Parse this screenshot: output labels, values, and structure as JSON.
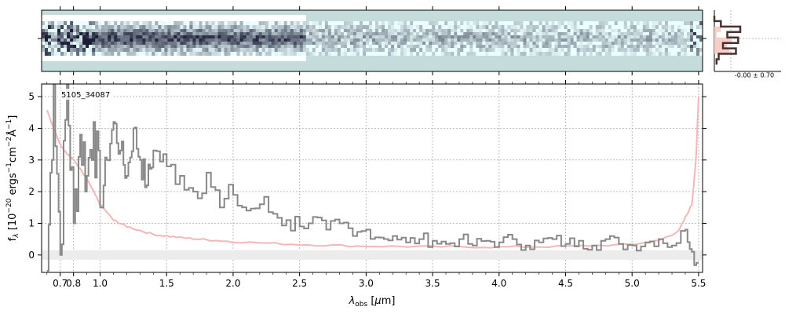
{
  "chart_data": [
    {
      "type": "heatmap",
      "panel": "2D spectrum",
      "colormap": "blue-grey on white, dark = high",
      "background_color": "#c5dcdc",
      "note_bands": "trace centered, strongest at blue end"
    },
    {
      "type": "line",
      "panel": "profile",
      "annotation": "-0.00 ± 0.70",
      "series": [
        {
          "values": [
            0.0,
            0.15,
            0.6,
            0.3,
            0.55,
            0.2,
            0.5,
            0.1,
            0.05
          ]
        },
        {
          "values": [
            0.0,
            0.0,
            0.15,
            0.05,
            0.4,
            0.3,
            0.35,
            0.0,
            0.0
          ]
        }
      ]
    },
    {
      "type": "line",
      "panel": "1D spectrum",
      "label": "5105_34087",
      "xlabel": "λ_obs [μm]",
      "ylabel": "f_λ [10^-20 ergs^-1cm^-2Å^-1]",
      "x_ticks": [
        "0.7",
        "0.8",
        "1.0",
        "1.5",
        "2.0",
        "2.5",
        "3.0",
        "3.5",
        "4.0",
        "4.5",
        "5.0",
        "5.5"
      ],
      "y_ticks": [
        "0",
        "1",
        "2",
        "3",
        "4",
        "5"
      ],
      "xlim": [
        0.56,
        5.53
      ],
      "ylim": [
        -0.55,
        5.4
      ],
      "grid": true,
      "colors": {
        "data": "#888888",
        "model": "#f4b6b6",
        "band": "#ececec"
      },
      "series": [
        {
          "style": "steps",
          "x": [
            0.6,
            0.65,
            0.7,
            0.75,
            0.8,
            0.85,
            0.9,
            0.95,
            1.0,
            1.05,
            1.1,
            1.15,
            1.2,
            1.25,
            1.3,
            1.35,
            1.4,
            1.5,
            1.6,
            1.7,
            1.8,
            1.9,
            2.0,
            2.1,
            2.2,
            2.3,
            2.4,
            2.5,
            2.6,
            2.7,
            2.8,
            2.9,
            3.0,
            3.1,
            3.2,
            3.3,
            3.4,
            3.5,
            3.6,
            3.7,
            3.8,
            3.9,
            4.0,
            4.1,
            4.2,
            4.3,
            4.4,
            4.5,
            4.6,
            4.7,
            4.8,
            4.9,
            5.0,
            5.1,
            5.2,
            5.3,
            5.4,
            5.45,
            5.5
          ],
          "y": [
            -0.5,
            5.4,
            0.0,
            5.4,
            1.0,
            3.8,
            2.5,
            4.2,
            1.5,
            3.0,
            4.2,
            3.3,
            2.5,
            4.0,
            3.0,
            2.2,
            3.3,
            2.8,
            2.5,
            2.0,
            2.6,
            1.5,
            1.9,
            1.4,
            1.6,
            1.3,
            1.1,
            0.9,
            1.2,
            0.8,
            1.0,
            0.6,
            0.8,
            0.55,
            0.6,
            0.4,
            0.5,
            0.45,
            0.35,
            0.5,
            0.3,
            0.45,
            0.4,
            0.5,
            0.3,
            0.4,
            0.5,
            0.35,
            0.45,
            0.3,
            0.5,
            0.35,
            0.3,
            0.4,
            0.5,
            0.3,
            0.8,
            0.1,
            -0.5
          ]
        },
        {
          "style": "model",
          "x": [
            0.6,
            0.65,
            0.7,
            0.75,
            0.8,
            0.9,
            1.0,
            1.1,
            1.2,
            1.4,
            1.6,
            1.8,
            2.0,
            2.5,
            3.0,
            3.5,
            4.0,
            4.5,
            5.0,
            5.2,
            5.35,
            5.45,
            5.48,
            5.5
          ],
          "y": [
            4.6,
            4.0,
            3.5,
            3.2,
            3.0,
            2.4,
            1.6,
            1.1,
            0.9,
            0.65,
            0.55,
            0.48,
            0.42,
            0.33,
            0.28,
            0.26,
            0.25,
            0.27,
            0.33,
            0.45,
            0.75,
            1.6,
            3.0,
            5.0
          ]
        }
      ]
    }
  ]
}
